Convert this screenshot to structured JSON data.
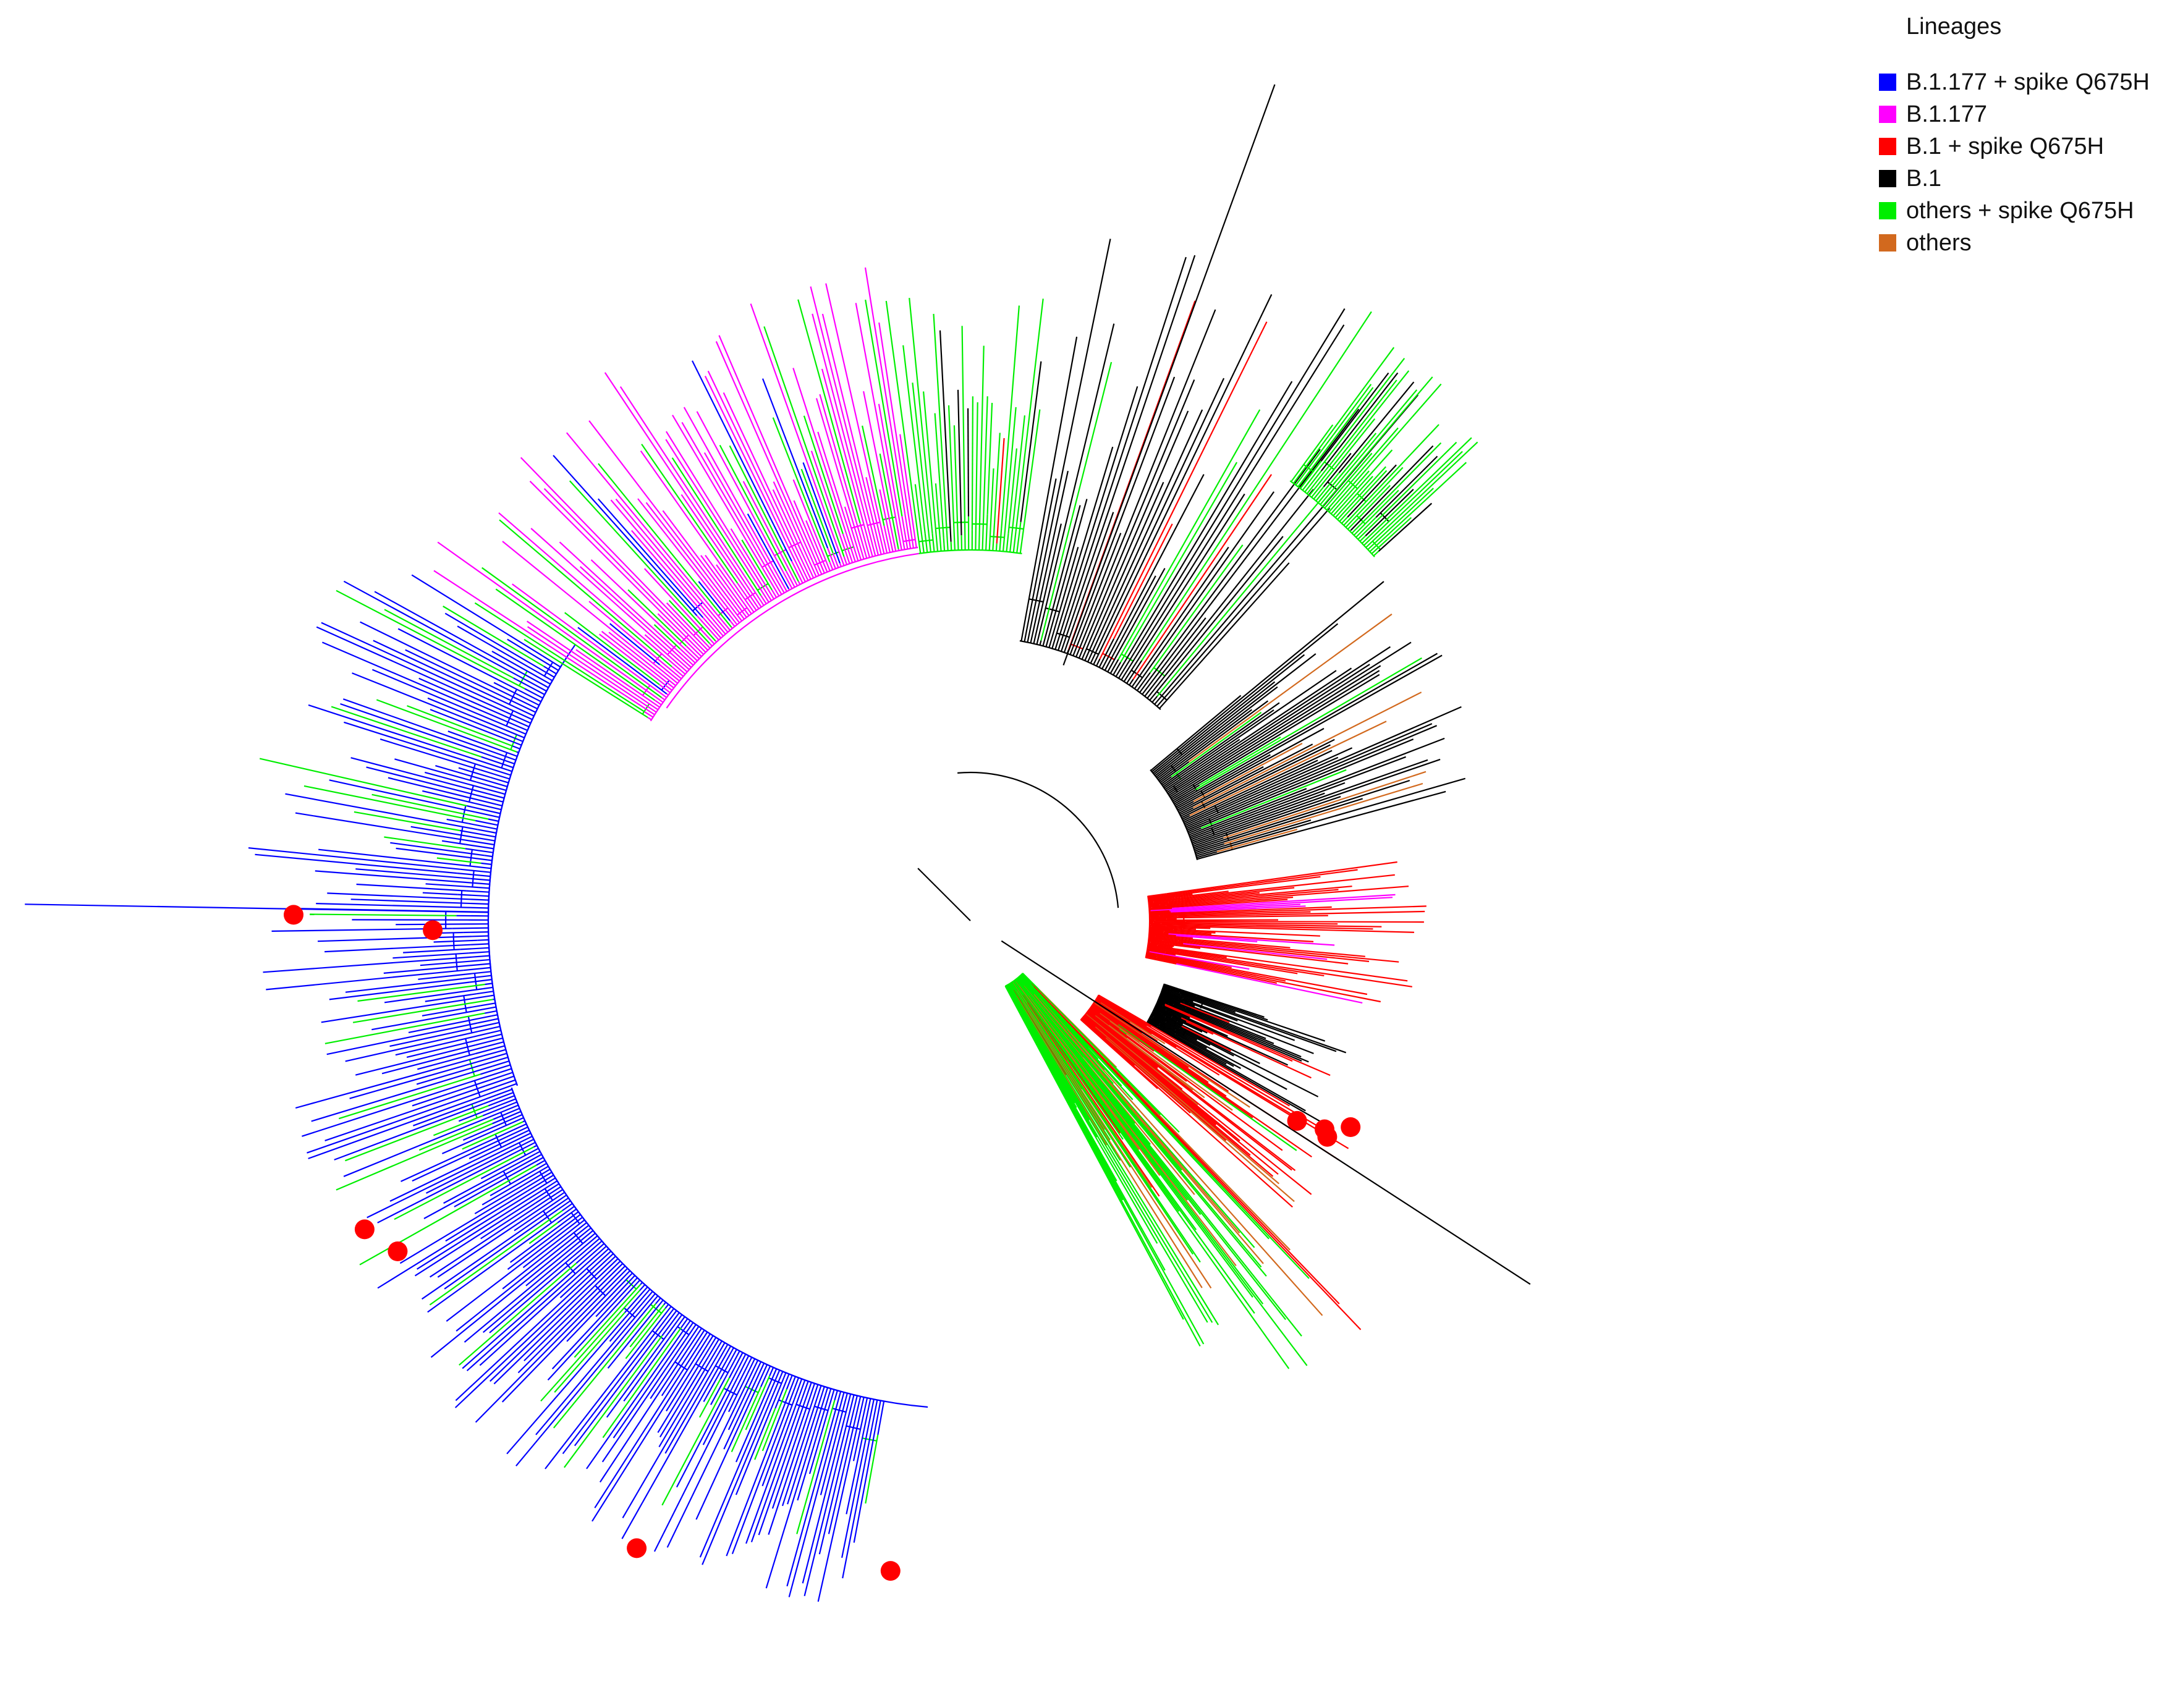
{
  "legend": {
    "title": "Lineages",
    "items": [
      {
        "label": "B.1.177 + spike Q675H",
        "color": "#0000ff"
      },
      {
        "label": "B.1.177",
        "color": "#ff00ff"
      },
      {
        "label": "B.1 + spike Q675H",
        "color": "#ff0000"
      },
      {
        "label": "B.1",
        "color": "#000000"
      },
      {
        "label": "others + spike Q675H",
        "color": "#00ee00"
      },
      {
        "label": "others",
        "color": "#d2691e"
      }
    ]
  },
  "tree": {
    "type": "circular phylogenetic tree",
    "marker_color": "#ff0000",
    "marked_tip_count": 10
  }
}
